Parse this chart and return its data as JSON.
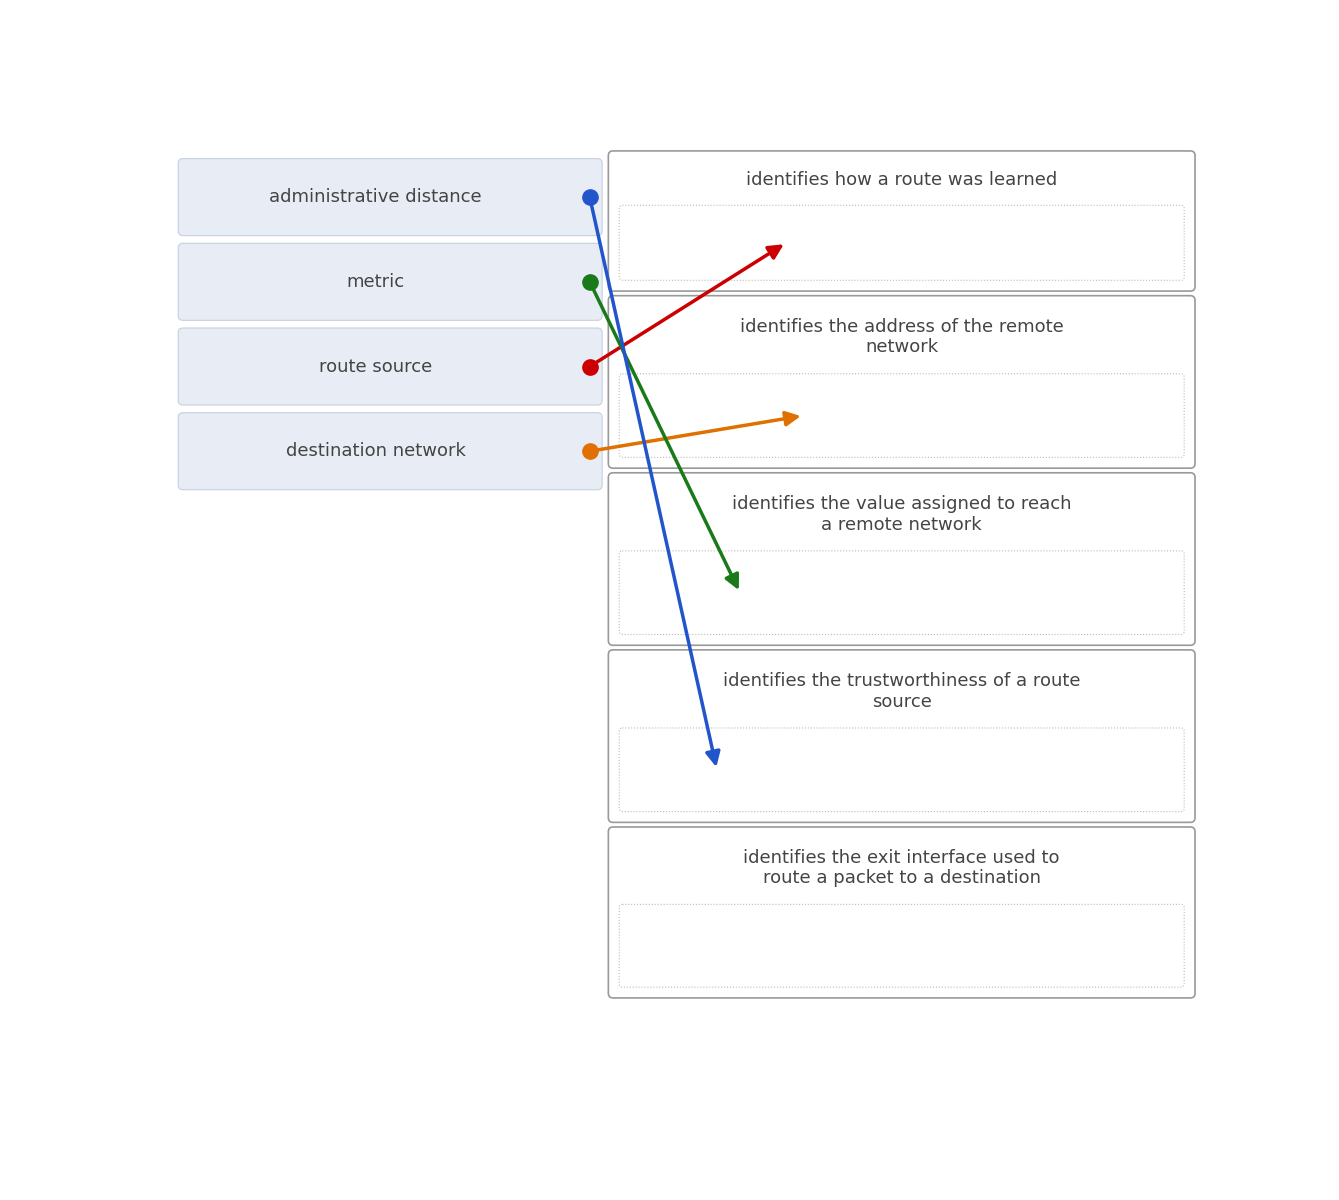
{
  "left_items": [
    {
      "label": "administrative distance",
      "dot_color": "#4472C4"
    },
    {
      "label": "metric",
      "dot_color": "#2E7D32"
    },
    {
      "label": "route source",
      "dot_color": "#C62828"
    },
    {
      "label": "destination network",
      "dot_color": "#E65100"
    }
  ],
  "right_items": [
    {
      "label": "identifies how a route was learned"
    },
    {
      "label": "identifies the address of the remote\nnetwork"
    },
    {
      "label": "identifies the value assigned to reach\na remote network"
    },
    {
      "label": "identifies the trustworthiness of a route\nsource"
    },
    {
      "label": "identifies the exit interface used to\nroute a packet to a destination"
    }
  ],
  "arrows": [
    {
      "from_item": 2,
      "to_item": 0,
      "color": "#CC0000"
    },
    {
      "from_item": 3,
      "to_item": 1,
      "color": "#E07000"
    },
    {
      "from_item": 1,
      "to_item": 2,
      "color": "#1A7A1A"
    },
    {
      "from_item": 0,
      "to_item": 3,
      "color": "#2255CC"
    }
  ],
  "bg_color": "#ffffff",
  "left_box_fill": "#e8edf5",
  "left_box_edge": "#c5d0e0",
  "right_box_fill": "#ffffff",
  "right_box_edge": "#999999",
  "right_inner_edge": "#bbbbbb",
  "text_color": "#444444"
}
